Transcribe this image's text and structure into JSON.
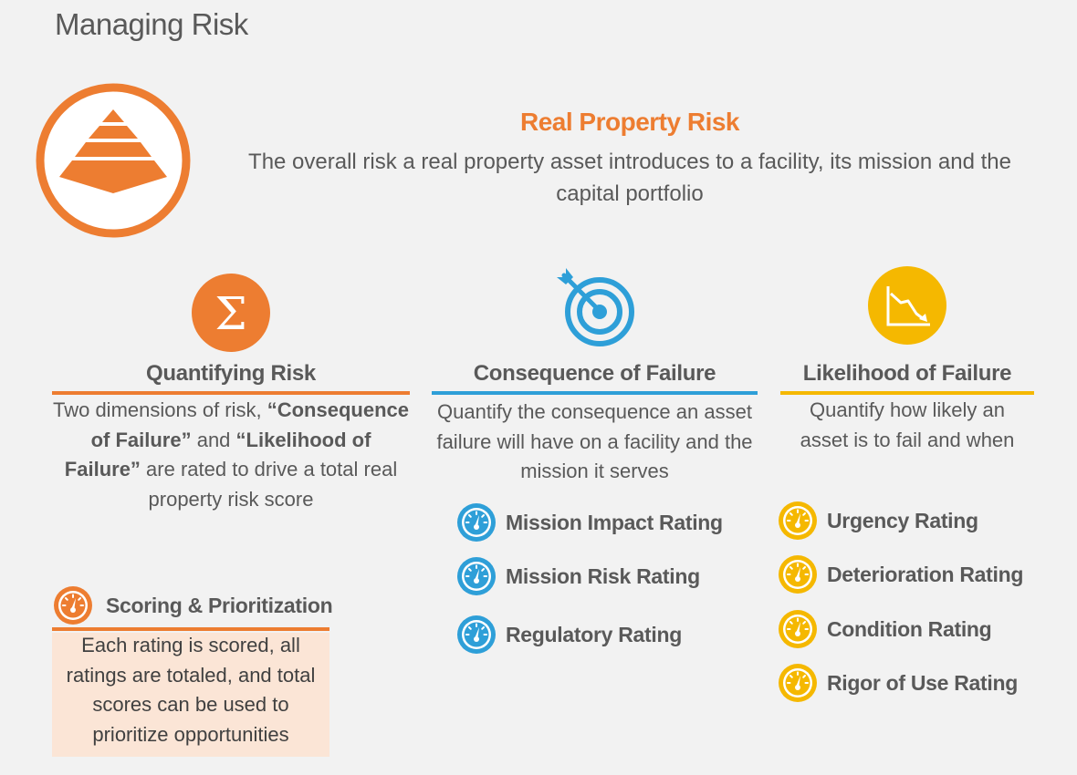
{
  "page": {
    "title": "Managing Risk"
  },
  "hero": {
    "icon": "pyramid-icon",
    "title": "Real Property Risk",
    "description_line1": "The overall risk a real property asset introduces to a facility, its mission and the",
    "description_line2": "capital portfolio"
  },
  "colors": {
    "orange": "#ed7d31",
    "blue": "#2e9fd8",
    "yellow": "#f5b800",
    "text": "#595959",
    "scoring_box": "#fbe5d6"
  },
  "columns": {
    "quantifying": {
      "icon": "sigma-icon",
      "title": "Quantifying Risk",
      "desc_1": "Two dimensions of risk, ",
      "desc_2": "“Consequence of Failure”",
      "desc_3": " and ",
      "desc_4": "“Likelihood of Failure”",
      "desc_5": " are rated to drive a total real property risk score"
    },
    "consequence": {
      "icon": "target-icon",
      "title": "Consequence of Failure",
      "description": "Quantify the consequence an asset failure will have on a facility and the mission it serves",
      "ratings": [
        {
          "label": "Mission Impact Rating",
          "icon": "gauge-icon"
        },
        {
          "label": "Mission Risk Rating",
          "icon": "gauge-icon"
        },
        {
          "label": "Regulatory Rating",
          "icon": "gauge-icon"
        }
      ]
    },
    "likelihood": {
      "icon": "declining-chart-icon",
      "title": "Likelihood  of Failure",
      "description": "Quantify how likely an asset is to fail and when",
      "ratings": [
        {
          "label": "Urgency Rating",
          "icon": "gauge-icon"
        },
        {
          "label": "Deterioration Rating",
          "icon": "gauge-icon"
        },
        {
          "label": "Condition Rating",
          "icon": "gauge-icon"
        },
        {
          "label": "Rigor of Use Rating",
          "icon": "gauge-icon"
        }
      ]
    }
  },
  "scoring": {
    "icon": "gauge-icon",
    "title": "Scoring & Prioritization",
    "description": "Each rating is scored, all ratings are totaled, and total scores can be used to prioritize opportunities"
  }
}
